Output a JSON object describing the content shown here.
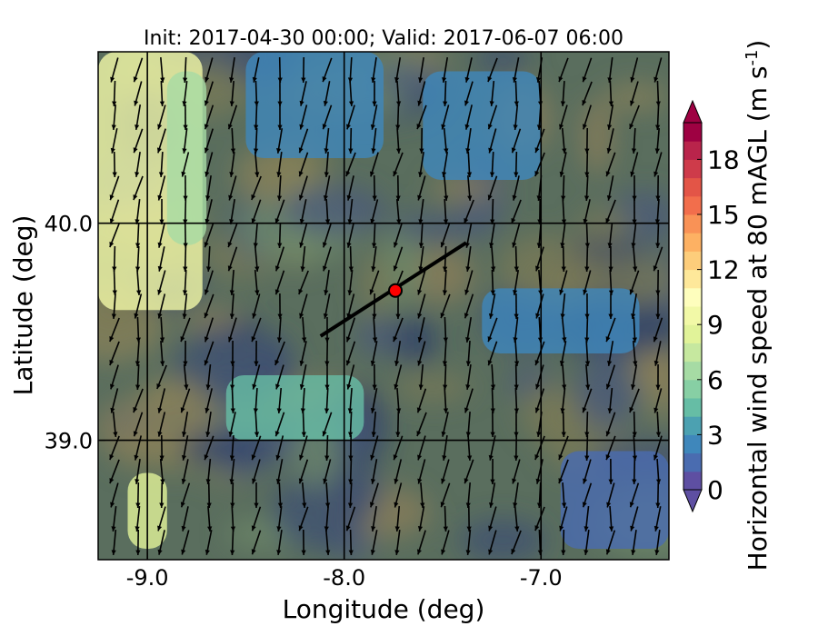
{
  "chart_data": {
    "type": "heatmap",
    "title": "Init: 2017-04-30 00:00; Valid: 2017-06-07 06:00",
    "xlabel": "Longitude (deg)",
    "ylabel": "Latitude (deg)",
    "xlim": [
      -9.25,
      -6.35
    ],
    "ylim": [
      38.45,
      40.79
    ],
    "xticks": [
      -9.0,
      -8.0,
      -7.0
    ],
    "xtick_labels": [
      "-9.0",
      "-8.0",
      "-7.0"
    ],
    "yticks": [
      39.0,
      40.0
    ],
    "ytick_labels": [
      "39.0",
      "40.0"
    ],
    "grid": true,
    "grid_lines": {
      "lon": [
        -9.0,
        -8.0,
        -7.0
      ],
      "lat": [
        39.0,
        40.0
      ]
    },
    "colorbar": {
      "label": "Horizontal wind speed at 80 mAGL (m s",
      "label_exponent": "-1",
      "label_suffix": ")",
      "min": 0,
      "max": 20,
      "step": 1,
      "ticks": [
        0,
        3,
        6,
        9,
        12,
        15,
        18
      ],
      "tick_labels": [
        "0",
        "3",
        "6",
        "9",
        "12",
        "15",
        "18"
      ],
      "extend": "both",
      "colors": [
        "#5e4fa2",
        "#4a6cb0",
        "#3f87bb",
        "#4ca1b1",
        "#66bda5",
        "#87cfa4",
        "#a6dba4",
        "#c6e89f",
        "#e1f399",
        "#f2f9a7",
        "#fefebd",
        "#fee89a",
        "#fdcd7b",
        "#fdb163",
        "#f99256",
        "#f26e4c",
        "#e35547",
        "#ce3b4a",
        "#b9244b",
        "#9e0142"
      ]
    },
    "transect_line": {
      "start": {
        "lon": -8.12,
        "lat": 39.48
      },
      "end": {
        "lon": -7.38,
        "lat": 39.91
      }
    },
    "point_marker": {
      "lon": -7.74,
      "lat": 39.69,
      "color": "#ff0000"
    },
    "regions": [
      {
        "lon": [
          -9.25,
          -8.72
        ],
        "lat": [
          39.6,
          40.79
        ],
        "speed": 9
      },
      {
        "lon": [
          -8.9,
          -8.7
        ],
        "lat": [
          39.9,
          40.7
        ],
        "speed": 6
      },
      {
        "lon": [
          -9.1,
          -8.9
        ],
        "lat": [
          38.5,
          38.85
        ],
        "speed": 8
      },
      {
        "lon": [
          -8.5,
          -7.8
        ],
        "lat": [
          40.3,
          40.79
        ],
        "speed": 2
      },
      {
        "lon": [
          -7.6,
          -7.0
        ],
        "lat": [
          40.2,
          40.7
        ],
        "speed": 2
      },
      {
        "lon": [
          -6.9,
          -6.35
        ],
        "lat": [
          38.5,
          38.95
        ],
        "speed": 1
      },
      {
        "lon": [
          -7.3,
          -6.5
        ],
        "lat": [
          39.4,
          39.7
        ],
        "speed": 2
      },
      {
        "lon": [
          -8.6,
          -7.9
        ],
        "lat": [
          39.0,
          39.3
        ],
        "speed": 4
      }
    ],
    "wind_vectors_u": -0.15,
    "wind_vectors_v": -1.0
  }
}
